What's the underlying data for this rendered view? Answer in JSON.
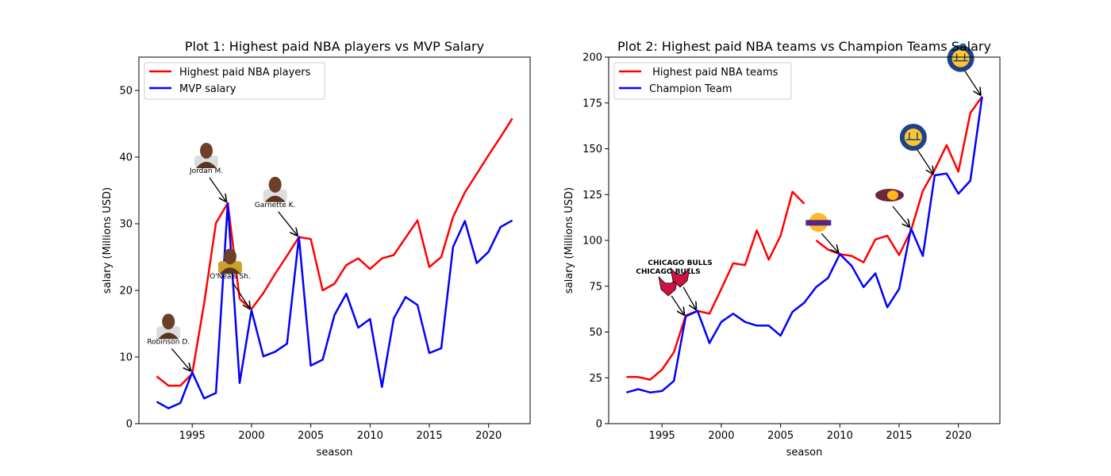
{
  "chart_data": [
    {
      "type": "line",
      "title": "Plot 1: Highest paid NBA players vs MVP Salary",
      "xlabel": "season",
      "ylabel": "salary (Millions USD)",
      "xlim": [
        1990.5,
        2023.5
      ],
      "ylim": [
        0,
        55
      ],
      "xticks": [
        1995,
        2000,
        2005,
        2010,
        2015,
        2020
      ],
      "yticks": [
        0,
        10,
        20,
        30,
        40,
        50
      ],
      "legend_position": "upper-left",
      "colors": {
        "players": "#ff0000",
        "mvp": "#0000ff"
      },
      "series": [
        {
          "name": "Highest paid NBA players",
          "color": "#ff0000",
          "x": [
            1992,
            1993,
            1994,
            1995,
            1996,
            1997,
            1998,
            1999,
            2000,
            2001,
            2002,
            2003,
            2004,
            2005,
            2006,
            2007,
            2008,
            2009,
            2010,
            2011,
            2012,
            2013,
            2014,
            2015,
            2016,
            2017,
            2018,
            2019,
            2020,
            2021,
            2022
          ],
          "y": [
            7.1,
            5.7,
            5.7,
            7.5,
            18.0,
            30.1,
            33.1,
            18.7,
            17.2,
            19.6,
            22.5,
            25.2,
            28.0,
            27.7,
            20.0,
            21.0,
            23.8,
            24.8,
            23.2,
            24.8,
            25.3,
            27.9,
            30.5,
            23.5,
            25.0,
            31.0,
            34.7,
            37.5,
            40.3,
            43.0,
            45.8
          ],
          "connect_segments": [
            [
              0,
              7
            ],
            [
              7,
              30
            ]
          ]
        },
        {
          "name": "MVP salary",
          "color": "#0000ff",
          "x": [
            1992,
            1993,
            1994,
            1995,
            1996,
            1997,
            1998,
            1999,
            2000,
            2001,
            2002,
            2003,
            2004,
            2005,
            2006,
            2007,
            2008,
            2009,
            2010,
            2011,
            2012,
            2013,
            2014,
            2015,
            2016,
            2017,
            2018,
            2019,
            2020,
            2021,
            2022
          ],
          "y": [
            3.3,
            2.3,
            3.1,
            7.7,
            3.8,
            4.6,
            33.1,
            6.1,
            17.0,
            10.1,
            10.8,
            12.0,
            28.0,
            8.7,
            9.6,
            16.3,
            19.5,
            14.4,
            15.7,
            5.5,
            15.8,
            19.0,
            17.8,
            10.6,
            11.3,
            26.5,
            30.4,
            24.1,
            25.8,
            29.5,
            30.5
          ]
        }
      ],
      "annotations": [
        {
          "label": "Robinson D.",
          "x": 1995,
          "y": 7.7,
          "icon": "player-photo-icon"
        },
        {
          "label": "Jordan M.",
          "x": 1998,
          "y": 33.1,
          "icon": "player-photo-icon"
        },
        {
          "label": "O'Neals Sh.",
          "x": 2000,
          "y": 17.0,
          "icon": "player-photo-icon"
        },
        {
          "label": "Garnette K.",
          "x": 2004,
          "y": 28.0,
          "icon": "player-photo-icon"
        }
      ]
    },
    {
      "type": "line",
      "title": "Plot 2: Highest paid NBA teams vs Champion Teams Salary",
      "xlabel": "season",
      "ylabel": "salary (Millions USD)",
      "xlim": [
        1990.5,
        2023.5
      ],
      "ylim": [
        0,
        200
      ],
      "xticks": [
        1995,
        2000,
        2005,
        2010,
        2015,
        2020
      ],
      "yticks": [
        0,
        25,
        50,
        75,
        100,
        125,
        150,
        175,
        200
      ],
      "legend_position": "upper-left",
      "series": [
        {
          "name": " Highest paid NBA teams",
          "color": "#ff0000",
          "x": [
            1992,
            1993,
            1994,
            1995,
            1996,
            1997,
            1998,
            1999,
            2000,
            2001,
            2002,
            2003,
            2004,
            2005,
            2006,
            2007,
            2008,
            2009,
            2010,
            2011,
            2012,
            2013,
            2014,
            2015,
            2016,
            2017,
            2018,
            2019,
            2020,
            2021,
            2022
          ],
          "y": [
            25.5,
            25.4,
            24.0,
            29.5,
            39.0,
            59.0,
            61.5,
            60.0,
            73.5,
            87.5,
            86.5,
            105.5,
            89.5,
            102.5,
            126.5,
            120.0,
            100.0,
            95.0,
            92.5,
            91.5,
            88.0,
            100.5,
            102.5,
            92.0,
            105.5,
            127.0,
            138.5,
            152.0,
            137.5,
            169.5,
            178.5
          ],
          "connect_segments": [
            [
              0,
              15
            ],
            [
              16,
              30
            ]
          ]
        },
        {
          "name": "Champion Team",
          "color": "#0000ff",
          "x": [
            1992,
            1993,
            1994,
            1995,
            1996,
            1997,
            1998,
            1999,
            2000,
            2001,
            2002,
            2003,
            2004,
            2005,
            2006,
            2007,
            2008,
            2009,
            2010,
            2011,
            2012,
            2013,
            2014,
            2015,
            2016,
            2017,
            2018,
            2019,
            2020,
            2021,
            2022
          ],
          "y": [
            17.0,
            18.8,
            17.0,
            17.8,
            23.3,
            58.5,
            61.5,
            44.0,
            55.5,
            60.0,
            55.5,
            53.5,
            53.5,
            48.0,
            61.0,
            66.0,
            74.5,
            79.5,
            92.5,
            86.0,
            74.5,
            82.0,
            63.5,
            73.5,
            106.5,
            91.5,
            135.5,
            136.5,
            125.5,
            132.5,
            178.5
          ]
        }
      ],
      "annotations": [
        {
          "label": "CHICAGO BULLS",
          "x": 1997,
          "y": 58.5,
          "icon": "chicago-bulls-logo-icon"
        },
        {
          "label": "CHICAGO BULLS",
          "x": 1998,
          "y": 61.5,
          "icon": "chicago-bulls-logo-icon"
        },
        {
          "label": "LAKERS",
          "x": 2010,
          "y": 92.5,
          "icon": "lakers-logo-icon"
        },
        {
          "label": "CAVALIERS",
          "x": 2016,
          "y": 106.5,
          "icon": "cavaliers-logo-icon"
        },
        {
          "label": "WARRIORS",
          "x": 2018,
          "y": 135.5,
          "icon": "warriors-logo-icon"
        },
        {
          "label": "WARRIORS",
          "x": 2022,
          "y": 178.5,
          "icon": "warriors-logo-icon"
        }
      ]
    }
  ]
}
